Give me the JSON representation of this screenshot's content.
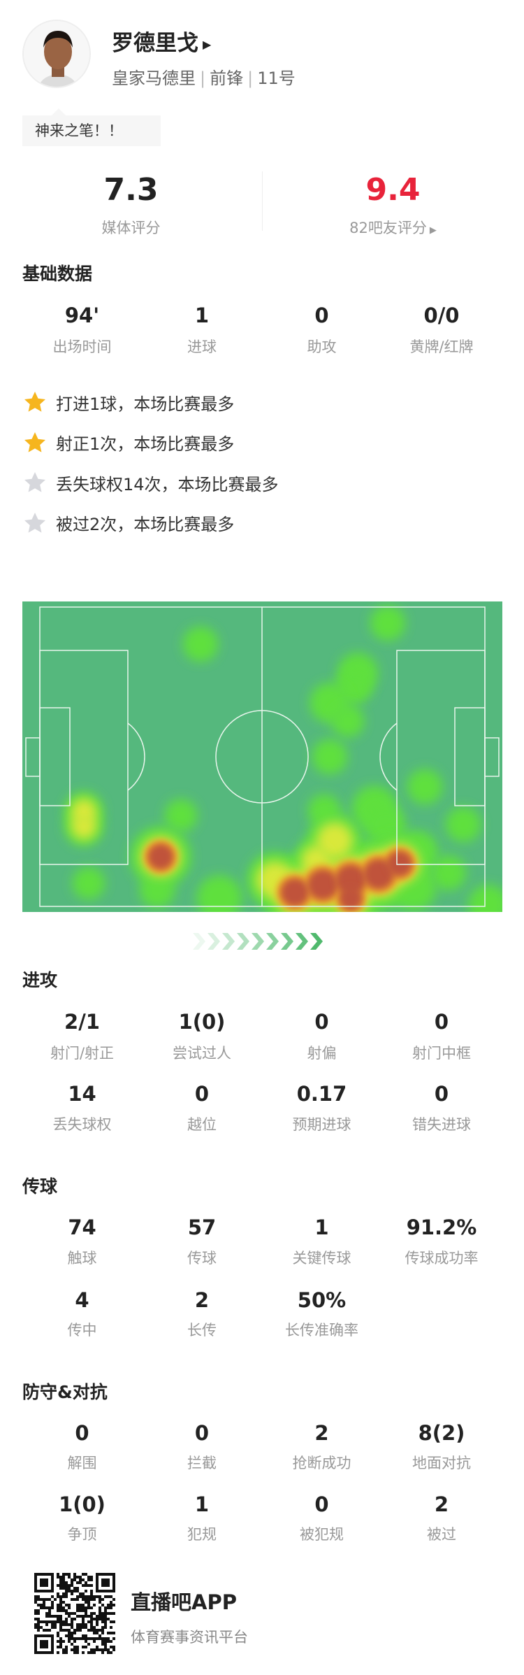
{
  "player": {
    "name": "罗德里戈",
    "team": "皇家马德里",
    "position": "前锋",
    "number": "11号",
    "comment": "神来之笔！！"
  },
  "ratings": {
    "media": {
      "value": "7.3",
      "label": "媒体评分",
      "color": "#222222"
    },
    "fans": {
      "value": "9.4",
      "label": "82吧友评分",
      "color": "#e8233a"
    }
  },
  "basic": {
    "title": "基础数据",
    "stats": [
      {
        "value": "94'",
        "label": "出场时间"
      },
      {
        "value": "1",
        "label": "进球"
      },
      {
        "value": "0",
        "label": "助攻"
      },
      {
        "value": "0/0",
        "label": "黄牌/红牌"
      }
    ]
  },
  "highlights": [
    {
      "text": "打进1球，本场比赛最多",
      "star": "gold"
    },
    {
      "text": "射正1次，本场比赛最多",
      "star": "gold"
    },
    {
      "text": "丢失球权14次，本场比赛最多",
      "star": "grey"
    },
    {
      "text": "被过2次，本场比赛最多",
      "star": "grey"
    }
  ],
  "colors": {
    "gold": "#f6b51e",
    "grey": "#d6d7dc",
    "pitch": "#55b87d",
    "accent_green": "#4cb86a"
  },
  "attack": {
    "title": "进攻",
    "stats": [
      {
        "value": "2/1",
        "label": "射门/射正"
      },
      {
        "value": "1(0)",
        "label": "尝试过人"
      },
      {
        "value": "0",
        "label": "射偏"
      },
      {
        "value": "0",
        "label": "射门中框"
      },
      {
        "value": "14",
        "label": "丢失球权"
      },
      {
        "value": "0",
        "label": "越位"
      },
      {
        "value": "0.17",
        "label": "预期进球"
      },
      {
        "value": "0",
        "label": "错失进球"
      }
    ]
  },
  "passing": {
    "title": "传球",
    "stats": [
      {
        "value": "74",
        "label": "触球"
      },
      {
        "value": "57",
        "label": "传球"
      },
      {
        "value": "1",
        "label": "关键传球"
      },
      {
        "value": "91.2%",
        "label": "传球成功率"
      },
      {
        "value": "4",
        "label": "传中"
      },
      {
        "value": "2",
        "label": "长传"
      },
      {
        "value": "50%",
        "label": "长传准确率"
      }
    ]
  },
  "defense": {
    "title": "防守&对抗",
    "stats": [
      {
        "value": "0",
        "label": "解围"
      },
      {
        "value": "0",
        "label": "拦截"
      },
      {
        "value": "2",
        "label": "抢断成功"
      },
      {
        "value": "8(2)",
        "label": "地面对抗"
      },
      {
        "value": "1(0)",
        "label": "争顶"
      },
      {
        "value": "1",
        "label": "犯规"
      },
      {
        "value": "0",
        "label": "被犯规"
      },
      {
        "value": "2",
        "label": "被过"
      }
    ]
  },
  "footer": {
    "app": "直播吧APP",
    "slogan": "体育赛事资讯平台"
  }
}
